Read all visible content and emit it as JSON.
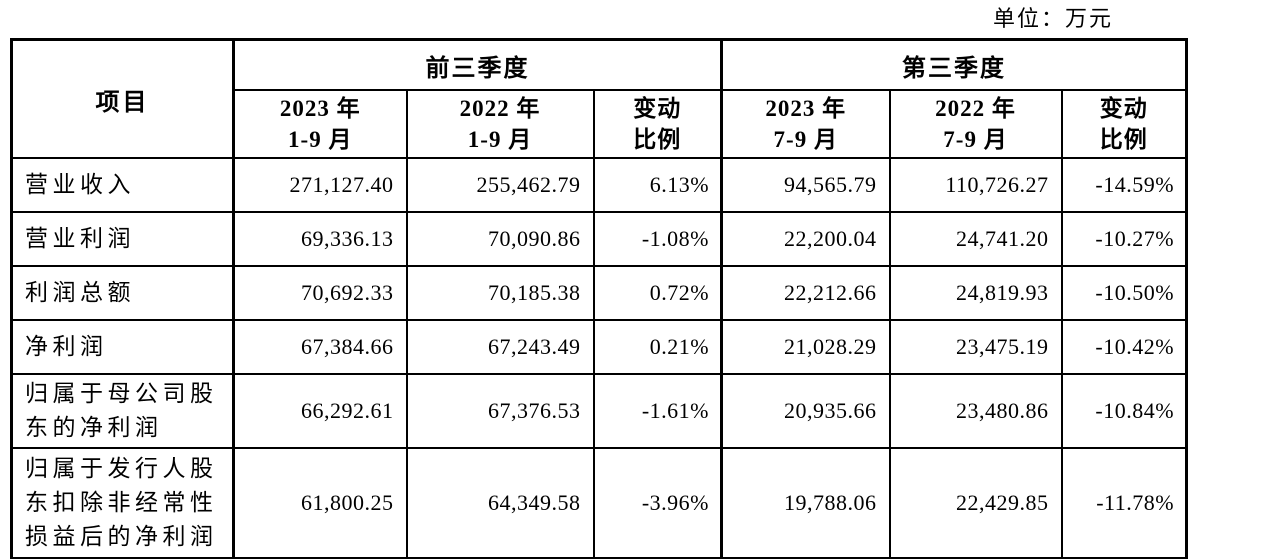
{
  "unit_label": "单位：万元",
  "colors": {
    "background": "#ffffff",
    "border": "#000000",
    "text": "#000000"
  },
  "table": {
    "item_header": "项目",
    "groups": [
      {
        "label": "前三季度",
        "subcolumns": [
          {
            "line1": "2023 年",
            "line2": "1-9 月"
          },
          {
            "line1": "2022 年",
            "line2": "1-9 月"
          },
          {
            "line1": "变动",
            "line2": "比例"
          }
        ]
      },
      {
        "label": "第三季度",
        "subcolumns": [
          {
            "line1": "2023 年",
            "line2": "7-9 月"
          },
          {
            "line1": "2022 年",
            "line2": "7-9 月"
          },
          {
            "line1": "变动",
            "line2": "比例"
          }
        ]
      }
    ],
    "rows": [
      {
        "item": "营业收入",
        "values": [
          "271,127.40",
          "255,462.79",
          "6.13%",
          "94,565.79",
          "110,726.27",
          "-14.59%"
        ]
      },
      {
        "item": "营业利润",
        "values": [
          "69,336.13",
          "70,090.86",
          "-1.08%",
          "22,200.04",
          "24,741.20",
          "-10.27%"
        ]
      },
      {
        "item": "利润总额",
        "values": [
          "70,692.33",
          "70,185.38",
          "0.72%",
          "22,212.66",
          "24,819.93",
          "-10.50%"
        ]
      },
      {
        "item": "净利润",
        "values": [
          "67,384.66",
          "67,243.49",
          "0.21%",
          "21,028.29",
          "23,475.19",
          "-10.42%"
        ]
      },
      {
        "item": "归属于母公司股东的净利润",
        "values": [
          "66,292.61",
          "67,376.53",
          "-1.61%",
          "20,935.66",
          "23,480.86",
          "-10.84%"
        ]
      },
      {
        "item": "归属于发行人股东扣除非经常性损益后的净利润",
        "values": [
          "61,800.25",
          "64,349.58",
          "-3.96%",
          "19,788.06",
          "22,429.85",
          "-11.78%"
        ]
      }
    ]
  }
}
